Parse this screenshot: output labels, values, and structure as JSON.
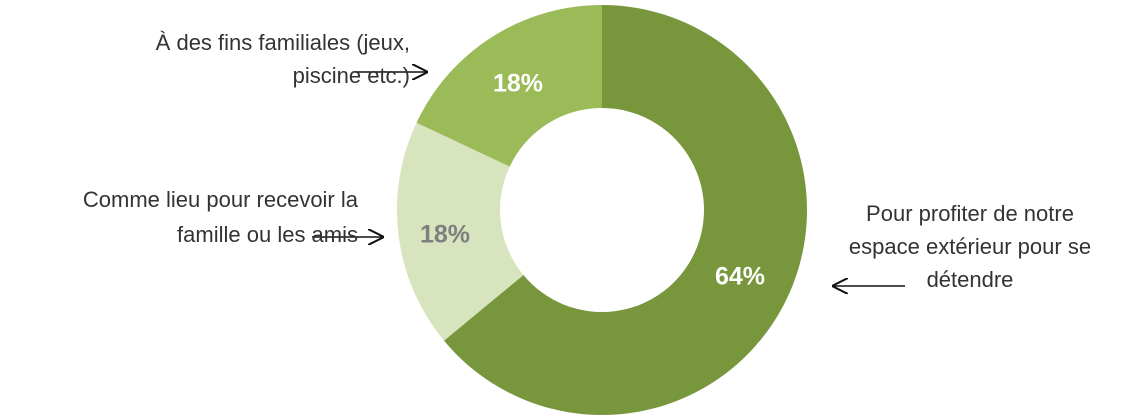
{
  "chart_data": {
    "type": "donut",
    "categories": [
      [
        "Pour profiter de notre",
        "espace extérieur pour se",
        "détendre"
      ],
      [
        "Comme lieu pour recevoir la",
        "famille ou les amis"
      ],
      [
        "À des fins familiales (jeux,",
        "piscine etc.)"
      ]
    ],
    "values": [
      64,
      18,
      18
    ],
    "value_labels": [
      "64%",
      "18%",
      "18%"
    ],
    "colors": [
      "#78963c",
      "#d7e4bd",
      "#9bbb59"
    ]
  }
}
